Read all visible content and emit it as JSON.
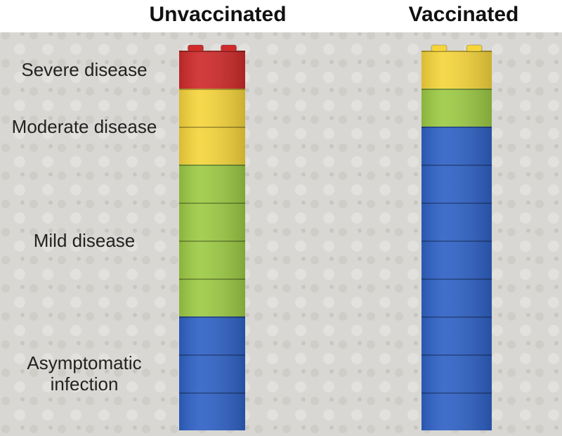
{
  "chart_data": {
    "type": "bar",
    "stacked": true,
    "categories": [
      "Unvaccinated",
      "Vaccinated"
    ],
    "series": [
      {
        "name": "Asymptomatic infection",
        "color": "#2f62c6",
        "values": [
          3,
          8
        ]
      },
      {
        "name": "Mild disease",
        "color": "#9dcb45",
        "values": [
          4,
          1
        ]
      },
      {
        "name": "Moderate disease",
        "color": "#f6d53c",
        "values": [
          2,
          1
        ]
      },
      {
        "name": "Severe disease",
        "color": "#cf2b2b",
        "values": [
          1,
          0
        ]
      }
    ]
  }
}
